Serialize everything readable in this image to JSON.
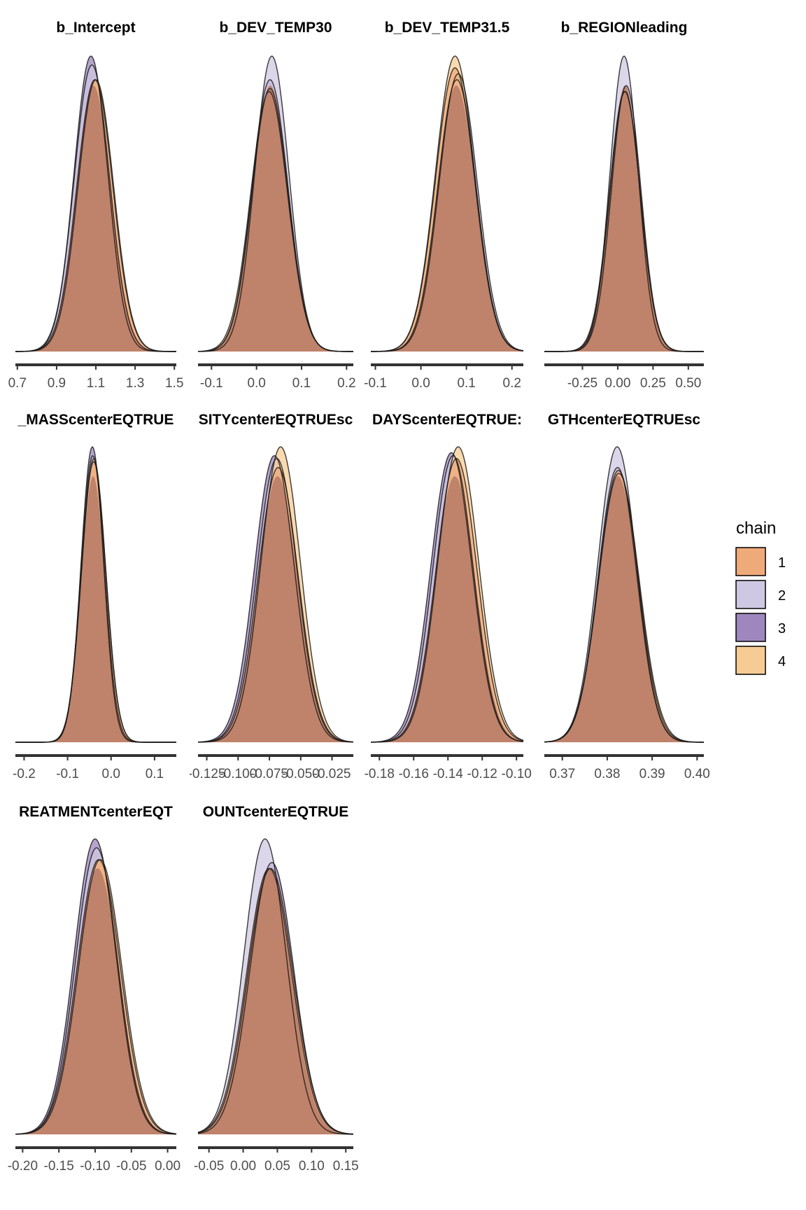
{
  "legend": {
    "title": "chain",
    "entries": [
      {
        "label": "1",
        "color": "#EFAA7A"
      },
      {
        "label": "2",
        "color": "#CFC8E2"
      },
      {
        "label": "3",
        "color": "#9E86BE"
      },
      {
        "label": "4",
        "color": "#F7CC94"
      }
    ]
  },
  "chart_data": [
    {
      "type": "area",
      "title": "b_Intercept",
      "ticks": [
        0.7,
        0.9,
        1.1,
        1.3,
        1.5
      ],
      "tick_labels": [
        "0.7",
        "0.9",
        "1.1",
        "1.3",
        "1.5"
      ],
      "xlim": [
        0.69,
        1.51
      ],
      "series": [
        {
          "name": "1",
          "mean": 1.095,
          "sd": 0.092,
          "peak": 0.92
        },
        {
          "name": "2",
          "mean": 1.08,
          "sd": 0.09,
          "peak": 0.97
        },
        {
          "name": "3",
          "mean": 1.075,
          "sd": 0.086,
          "peak": 1.0
        },
        {
          "name": "4",
          "mean": 1.1,
          "sd": 0.091,
          "peak": 0.92
        }
      ]
    },
    {
      "type": "area",
      "title": "b_DEV_TEMP30",
      "ticks": [
        -0.1,
        0.0,
        0.1,
        0.2
      ],
      "tick_labels": [
        "-0.1",
        "0.0",
        "0.1",
        "0.2"
      ],
      "xlim": [
        -0.13,
        0.215
      ],
      "series": [
        {
          "name": "1",
          "mean": 0.03,
          "sd": 0.04,
          "peak": 0.89
        },
        {
          "name": "2",
          "mean": 0.034,
          "sd": 0.038,
          "peak": 1.0
        },
        {
          "name": "3",
          "mean": 0.03,
          "sd": 0.04,
          "peak": 0.92
        },
        {
          "name": "4",
          "mean": 0.028,
          "sd": 0.041,
          "peak": 0.88
        }
      ]
    },
    {
      "type": "area",
      "title": "b_DEV_TEMP31.5",
      "ticks": [
        -0.1,
        0.0,
        0.1,
        0.2
      ],
      "tick_labels": [
        "-0.1",
        "0.0",
        "0.1",
        "0.2"
      ],
      "xlim": [
        -0.11,
        0.225
      ],
      "series": [
        {
          "name": "1",
          "mean": 0.075,
          "sd": 0.043,
          "peak": 0.96
        },
        {
          "name": "2",
          "mean": 0.082,
          "sd": 0.042,
          "peak": 0.94
        },
        {
          "name": "3",
          "mean": 0.079,
          "sd": 0.042,
          "peak": 0.92
        },
        {
          "name": "4",
          "mean": 0.075,
          "sd": 0.043,
          "peak": 1.0
        }
      ]
    },
    {
      "type": "area",
      "title": "b_REGIONleading",
      "ticks": [
        -0.25,
        0.0,
        0.25,
        0.5
      ],
      "tick_labels": [
        "-0.25",
        "0.00",
        "0.25",
        "0.50"
      ],
      "xlim": [
        -0.52,
        0.61
      ],
      "series": [
        {
          "name": "1",
          "mean": 0.05,
          "sd": 0.11,
          "peak": 0.88
        },
        {
          "name": "2",
          "mean": 0.045,
          "sd": 0.1,
          "peak": 1.0
        },
        {
          "name": "3",
          "mean": 0.06,
          "sd": 0.105,
          "peak": 0.9
        },
        {
          "name": "4",
          "mean": 0.052,
          "sd": 0.108,
          "peak": 0.88
        }
      ]
    },
    {
      "type": "area",
      "title": "_MASScenterEQTRUE",
      "ticks": [
        -0.2,
        -0.1,
        0.0,
        0.1
      ],
      "tick_labels": [
        "-0.2",
        "-0.1",
        "0.0",
        "0.1"
      ],
      "xlim": [
        -0.22,
        0.15
      ],
      "series": [
        {
          "name": "1",
          "mean": -0.04,
          "sd": 0.028,
          "peak": 0.96
        },
        {
          "name": "2",
          "mean": -0.042,
          "sd": 0.027,
          "peak": 0.97
        },
        {
          "name": "3",
          "mean": -0.043,
          "sd": 0.026,
          "peak": 1.0
        },
        {
          "name": "4",
          "mean": -0.04,
          "sd": 0.028,
          "peak": 0.95
        }
      ]
    },
    {
      "type": "area",
      "title": "SITYcenterEQTRUEsc",
      "ticks": [
        -0.125,
        -0.1,
        -0.075,
        -0.05,
        -0.025
      ],
      "tick_labels": [
        "-0.125",
        "-0.100",
        "-0.075",
        "-0.050",
        "-0.025"
      ],
      "xlim": [
        -0.132,
        -0.008
      ],
      "series": [
        {
          "name": "1",
          "mean": -0.068,
          "sd": 0.016,
          "peak": 0.93
        },
        {
          "name": "2",
          "mean": -0.069,
          "sd": 0.016,
          "peak": 0.96
        },
        {
          "name": "3",
          "mean": -0.071,
          "sd": 0.016,
          "peak": 0.97
        },
        {
          "name": "4",
          "mean": -0.066,
          "sd": 0.0158,
          "peak": 1.0
        }
      ]
    },
    {
      "type": "area",
      "title": "DAYScenterEQTRUE:",
      "ticks": [
        -0.18,
        -0.16,
        -0.14,
        -0.12,
        -0.1
      ],
      "tick_labels": [
        "-0.18",
        "-0.16",
        "-0.14",
        "-0.12",
        "-0.10"
      ],
      "xlim": [
        -0.185,
        -0.096
      ],
      "series": [
        {
          "name": "1",
          "mean": -0.135,
          "sd": 0.012,
          "peak": 0.96
        },
        {
          "name": "2",
          "mean": -0.137,
          "sd": 0.0118,
          "peak": 0.97
        },
        {
          "name": "3",
          "mean": -0.138,
          "sd": 0.012,
          "peak": 0.98
        },
        {
          "name": "4",
          "mean": -0.134,
          "sd": 0.012,
          "peak": 1.0
        }
      ]
    },
    {
      "type": "area",
      "title": "GTHcenterEQTRUEsc",
      "ticks": [
        0.37,
        0.38,
        0.39,
        0.4
      ],
      "tick_labels": [
        "0.37",
        "0.38",
        "0.39",
        "0.40"
      ],
      "xlim": [
        0.366,
        0.4015
      ],
      "series": [
        {
          "name": "1",
          "mean": 0.3825,
          "sd": 0.0044,
          "peak": 0.92
        },
        {
          "name": "2",
          "mean": 0.3822,
          "sd": 0.0043,
          "peak": 1.0
        },
        {
          "name": "3",
          "mean": 0.3823,
          "sd": 0.0043,
          "peak": 0.93
        },
        {
          "name": "4",
          "mean": 0.3826,
          "sd": 0.0045,
          "peak": 0.91
        }
      ]
    },
    {
      "type": "area",
      "title": "REATMENTcenterEQT",
      "ticks": [
        -0.2,
        -0.15,
        -0.1,
        -0.05,
        0.0
      ],
      "tick_labels": [
        "-0.20",
        "-0.15",
        "-0.10",
        "-0.05",
        "0.00"
      ],
      "xlim": [
        -0.21,
        0.012
      ],
      "series": [
        {
          "name": "1",
          "mean": -0.095,
          "sd": 0.03,
          "peak": 0.93
        },
        {
          "name": "2",
          "mean": -0.098,
          "sd": 0.029,
          "peak": 0.97
        },
        {
          "name": "3",
          "mean": -0.1,
          "sd": 0.029,
          "peak": 1.0
        },
        {
          "name": "4",
          "mean": -0.093,
          "sd": 0.03,
          "peak": 0.93
        }
      ]
    },
    {
      "type": "area",
      "title": "OUNTcenterEQTRUE",
      "ticks": [
        -0.05,
        0.0,
        0.05,
        0.1,
        0.15
      ],
      "tick_labels": [
        "-0.05",
        "0.00",
        "0.05",
        "0.10",
        "0.15"
      ],
      "xlim": [
        -0.066,
        0.161
      ],
      "series": [
        {
          "name": "1",
          "mean": 0.04,
          "sd": 0.033,
          "peak": 0.9
        },
        {
          "name": "2",
          "mean": 0.032,
          "sd": 0.031,
          "peak": 1.0
        },
        {
          "name": "3",
          "mean": 0.042,
          "sd": 0.032,
          "peak": 0.92
        },
        {
          "name": "4",
          "mean": 0.038,
          "sd": 0.033,
          "peak": 0.9
        }
      ]
    }
  ]
}
